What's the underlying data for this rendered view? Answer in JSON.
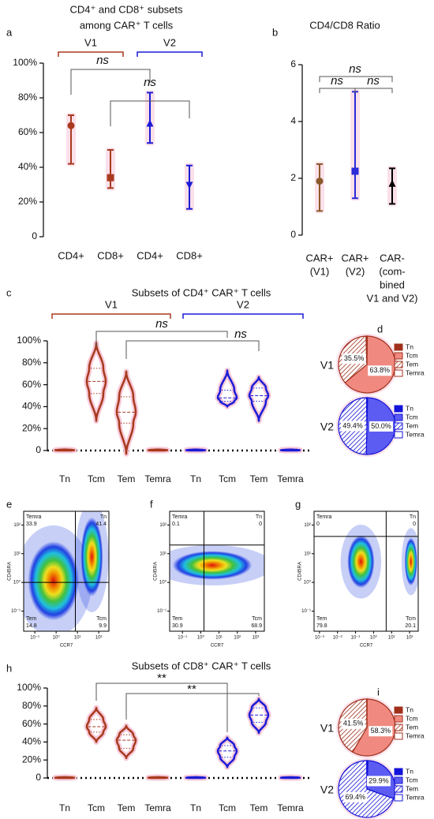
{
  "chart_data": [
    {
      "type": "dot",
      "letter": "a",
      "title": [
        "CD4⁺ and CD8⁺ subsets",
        "among CAR⁺ T cells"
      ],
      "ylim": [
        0,
        100
      ],
      "yticks": [
        0,
        {
          "value": 20,
          "label": "20%"
        },
        {
          "value": 40,
          "label": "40%"
        },
        {
          "value": 60,
          "label": "60%"
        },
        {
          "value": 80,
          "label": "80%"
        },
        {
          "value": 100,
          "label": "100%"
        }
      ],
      "series": [
        {
          "name": "V1",
          "color": "#a83a1e",
          "categories": [
            "CD4+",
            "CD8+"
          ],
          "values": [
            64,
            34
          ],
          "low": [
            42,
            28
          ],
          "high": [
            70,
            50
          ],
          "markers": [
            "circle",
            "square"
          ]
        },
        {
          "name": "V2",
          "color": "#1c1cd6",
          "categories": [
            "CD4+",
            "CD8+"
          ],
          "values": [
            65,
            30
          ],
          "low": [
            54,
            16
          ],
          "high": [
            83,
            41
          ],
          "markers": [
            "triangle-up",
            "triangle-down"
          ]
        }
      ],
      "annotations": [
        "ns",
        "ns"
      ]
    },
    {
      "type": "dot",
      "letter": "b",
      "title": "CD4/CD8 Ratio",
      "ylim": [
        0,
        6
      ],
      "yticks": [
        0,
        2,
        4,
        6
      ],
      "series": [
        {
          "color": "#8b5a2b",
          "categories": [
            [
              "CAR+",
              "(V1)"
            ]
          ],
          "values": [
            1.9
          ],
          "low": [
            0.85
          ],
          "high": [
            2.5
          ],
          "markers": [
            "circle"
          ]
        },
        {
          "color": "#2a2ad8",
          "categories": [
            [
              "CAR+",
              "(V2)"
            ]
          ],
          "values": [
            2.25
          ],
          "low": [
            1.3
          ],
          "high": [
            5.05
          ],
          "markers": [
            "square"
          ]
        },
        {
          "color": "#000000",
          "categories": [
            [
              "CAR-",
              "(com-",
              "bined",
              "V1 and V2)"
            ]
          ],
          "values": [
            1.8
          ],
          "low": [
            1.1
          ],
          "high": [
            2.35
          ],
          "markers": [
            "triangle-up"
          ]
        }
      ],
      "annotations": [
        "ns",
        "ns",
        "ns"
      ]
    },
    {
      "type": "violin",
      "letter": "c",
      "title": "Subsets of CD4⁺ CAR⁺ T cells",
      "zero_line": true,
      "ylim": [
        0,
        100
      ],
      "yticks": [
        0,
        {
          "value": 20,
          "label": "20%"
        },
        {
          "value": 40,
          "label": "40%"
        },
        {
          "value": 60,
          "label": "60%"
        },
        {
          "value": 80,
          "label": "80%"
        },
        {
          "value": 100,
          "label": "100%"
        }
      ],
      "series": [
        {
          "name": "V1",
          "color": "#a83a1e",
          "categories": [
            "Tn",
            "Tcm",
            "Tem",
            "Temra"
          ],
          "min": [
            0,
            27,
            -3,
            0
          ],
          "q1": [
            0,
            52,
            25,
            0
          ],
          "median": [
            0.3,
            63,
            35,
            0.3
          ],
          "q3": [
            0.6,
            75,
            49,
            0.6
          ],
          "max": [
            1,
            98,
            72,
            1
          ]
        },
        {
          "name": "V2",
          "color": "#1c1cd6",
          "categories": [
            "Tn",
            "Tcm",
            "Tem",
            "Temra"
          ],
          "min": [
            0,
            40,
            27,
            0
          ],
          "q1": [
            0,
            45,
            45,
            0
          ],
          "median": [
            0.3,
            48,
            50,
            0.3
          ],
          "q3": [
            0.6,
            55,
            57,
            0.6
          ],
          "max": [
            1,
            73,
            67,
            1
          ]
        }
      ],
      "annotations": [
        "ns",
        "ns"
      ]
    },
    {
      "type": "pie",
      "letter": "d",
      "categories": [
        "Tn",
        "Tcm",
        "Tem",
        "Temra"
      ],
      "fills": [
        "solid",
        "light",
        "hatch",
        "open"
      ],
      "series": [
        {
          "name": "V1",
          "color": "#a0301c",
          "light_color": "#f08a80",
          "values": [
            0.2,
            63.8,
            35.5,
            0.5
          ],
          "value_labels": [
            null,
            "63.8%",
            "35.5%",
            null
          ]
        },
        {
          "name": "V2",
          "color": "#1414d8",
          "light_color": "#5c5cf2",
          "values": [
            0.4,
            50,
            49.4,
            0.2
          ],
          "value_labels": [
            null,
            "50.0%",
            "49.4%",
            null
          ]
        }
      ]
    },
    {
      "type": "flow",
      "letter": "e",
      "xlabel": "CCR7",
      "ylabel": "CD45RA",
      "xscale": "log",
      "yscale": "log",
      "xlim": [
        0.03,
        300
      ],
      "xticks": [
        {
          "value": 0.1,
          "label": "10⁻¹"
        },
        {
          "value": 1,
          "label": "10⁰"
        },
        {
          "value": 10,
          "label": "10¹"
        },
        {
          "value": 100,
          "label": "10²"
        }
      ],
      "ylim": [
        0.02,
        300
      ],
      "yticks": [
        {
          "value": 0.1,
          "label": "10⁻¹"
        },
        {
          "value": 1,
          "label": "10⁰"
        },
        {
          "value": 10,
          "label": "10¹"
        },
        {
          "value": 100,
          "label": "10²"
        }
      ],
      "gate": [
        8,
        1
      ],
      "quadrants": [
        {
          "name": "Temra",
          "value": 33.9
        },
        {
          "name": "Tn",
          "value": 41.4
        },
        {
          "name": "Tem",
          "value": 14.8
        },
        {
          "name": "Tcm",
          "value": 9.9
        }
      ]
    },
    {
      "type": "flow",
      "letter": "f",
      "xlabel": "CCR7",
      "ylabel": "CD45RA",
      "xscale": "log",
      "yscale": "log",
      "xlim": [
        0.02,
        3000
      ],
      "xticks": [
        {
          "value": 0.1,
          "label": "10⁻¹"
        },
        {
          "value": 1,
          "label": "10⁰"
        },
        {
          "value": 10,
          "label": "10¹"
        },
        {
          "value": 100,
          "label": "10²"
        },
        {
          "value": 1000,
          "label": "10³"
        }
      ],
      "ylim": [
        0.02,
        300
      ],
      "yticks": [
        {
          "value": 0.1,
          "label": "10⁻¹"
        },
        {
          "value": 1,
          "label": "10⁰"
        },
        {
          "value": 10,
          "label": "10¹"
        },
        {
          "value": 100,
          "label": "10²"
        }
      ],
      "gate": [
        1.5,
        20
      ],
      "quadrants": [
        {
          "name": "Temra",
          "value": 0.1
        },
        {
          "name": "Tn",
          "value": 0
        },
        {
          "name": "Tem",
          "value": 30.9
        },
        {
          "name": "Tcm",
          "value": 68.9
        }
      ]
    },
    {
      "type": "flow",
      "letter": "g",
      "xlabel": "CCR7",
      "ylabel": "CD45RA",
      "xscale": "log",
      "yscale": "log",
      "xlim": [
        0.0005,
        300
      ],
      "xticks": [
        {
          "value": 0.001,
          "label": "10⁻³"
        },
        {
          "value": 0.01,
          "label": "10⁻²"
        },
        {
          "value": 0.1,
          "label": "10⁻¹"
        },
        {
          "value": 1,
          "label": "10⁰"
        },
        {
          "value": 10,
          "label": "10¹"
        },
        {
          "value": 100,
          "label": "10²"
        }
      ],
      "ylim": [
        0.02,
        300
      ],
      "yticks": [
        {
          "value": 0.1,
          "label": "10⁻¹"
        },
        {
          "value": 1,
          "label": "10⁰"
        },
        {
          "value": 10,
          "label": "10¹"
        },
        {
          "value": 100,
          "label": "10²"
        }
      ],
      "gate": [
        5,
        40
      ],
      "quadrants": [
        {
          "name": "Temra",
          "value": 0
        },
        {
          "name": "Tn",
          "value": 0
        },
        {
          "name": "Tem",
          "value": 79.8
        },
        {
          "name": "Tcm",
          "value": 20.1
        }
      ]
    },
    {
      "type": "violin",
      "letter": "h",
      "title": "Subsets of CD8⁺ CAR⁺ T cells",
      "zero_line": true,
      "ylim": [
        0,
        100
      ],
      "yticks": [
        0,
        {
          "value": 20,
          "label": "20%"
        },
        {
          "value": 40,
          "label": "40%"
        },
        {
          "value": 60,
          "label": "60%"
        },
        {
          "value": 80,
          "label": "80%"
        },
        {
          "value": 100,
          "label": "100%"
        }
      ],
      "series": [
        {
          "color": "#a83a1e",
          "categories": [
            "Tn",
            "Tcm",
            "Tem",
            "Temra"
          ],
          "min": [
            0,
            40,
            22,
            0
          ],
          "q1": [
            0,
            51,
            33,
            0
          ],
          "median": [
            0.3,
            57,
            42,
            0.3
          ],
          "q3": [
            0.6,
            65,
            48,
            0.6
          ],
          "max": [
            1,
            78,
            58,
            1
          ]
        },
        {
          "color": "#1c1cd6",
          "categories": [
            "Tn",
            "Tcm",
            "Tem",
            "Temra"
          ],
          "min": [
            0,
            12,
            50,
            0
          ],
          "q1": [
            0,
            23,
            62,
            0
          ],
          "median": [
            0.3,
            30,
            70,
            0.3
          ],
          "q3": [
            0.6,
            36,
            78,
            0.6
          ],
          "max": [
            1,
            45,
            88,
            1
          ]
        }
      ],
      "annotations": [
        "**",
        "**"
      ]
    },
    {
      "type": "pie",
      "letter": "i",
      "categories": [
        "Tn",
        "Tcm",
        "Tem",
        "Temra"
      ],
      "fills": [
        "solid",
        "light",
        "hatch",
        "open"
      ],
      "series": [
        {
          "name": "V1",
          "color": "#a0301c",
          "light_color": "#f08a80",
          "values": [
            0.1,
            58.3,
            41.5,
            0.1
          ],
          "value_labels": [
            null,
            "58.3%",
            "41.5%",
            null
          ]
        },
        {
          "name": "V2",
          "color": "#1414d8",
          "light_color": "#5c5cf2",
          "values": [
            0.6,
            29.9,
            69.4,
            0.1
          ],
          "value_labels": [
            null,
            "29.9%",
            "69.4%",
            null
          ]
        }
      ]
    }
  ]
}
